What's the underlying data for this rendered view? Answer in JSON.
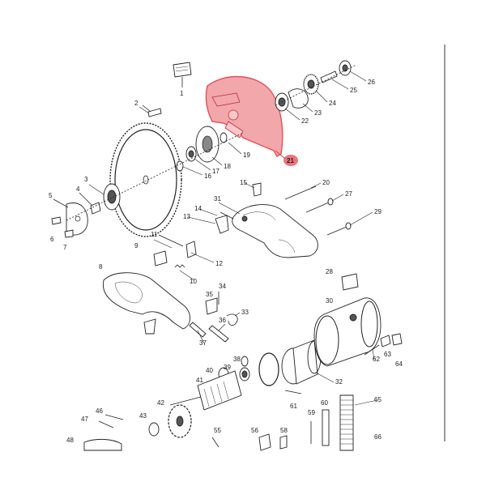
{
  "diagram": {
    "highlight_color": "#e8454f",
    "highlighted_part": "21",
    "part_labels": {
      "p1": "1",
      "p2": "2",
      "p3": "3",
      "p4": "4",
      "p5": "5",
      "p6": "6",
      "p7": "7",
      "p8": "8",
      "p9": "9",
      "p10": "10",
      "p11": "11",
      "p12": "12",
      "p13": "13",
      "p14": "14",
      "p15": "15",
      "p16": "16",
      "p17": "17",
      "p18": "18",
      "p19": "19",
      "p20": "20",
      "p21": "21",
      "p22": "22",
      "p23": "23",
      "p24": "24",
      "p25": "25",
      "p26": "26",
      "p27": "27",
      "p28": "28",
      "p29": "29",
      "p30": "30",
      "p31": "31",
      "p32": "32",
      "p33": "33",
      "p34": "34",
      "p35": "35",
      "p36": "36",
      "p37": "37",
      "p38": "38",
      "p39": "39",
      "p40": "40",
      "p41": "41",
      "p42": "42",
      "p43": "43",
      "p46": "46",
      "p47": "47",
      "p48": "48",
      "p55": "55",
      "p56": "56",
      "p58": "58",
      "p59": "59",
      "p60": "60",
      "p61": "61",
      "p62": "62",
      "p63": "63",
      "p64": "64",
      "p65": "65",
      "p66": "66"
    }
  }
}
